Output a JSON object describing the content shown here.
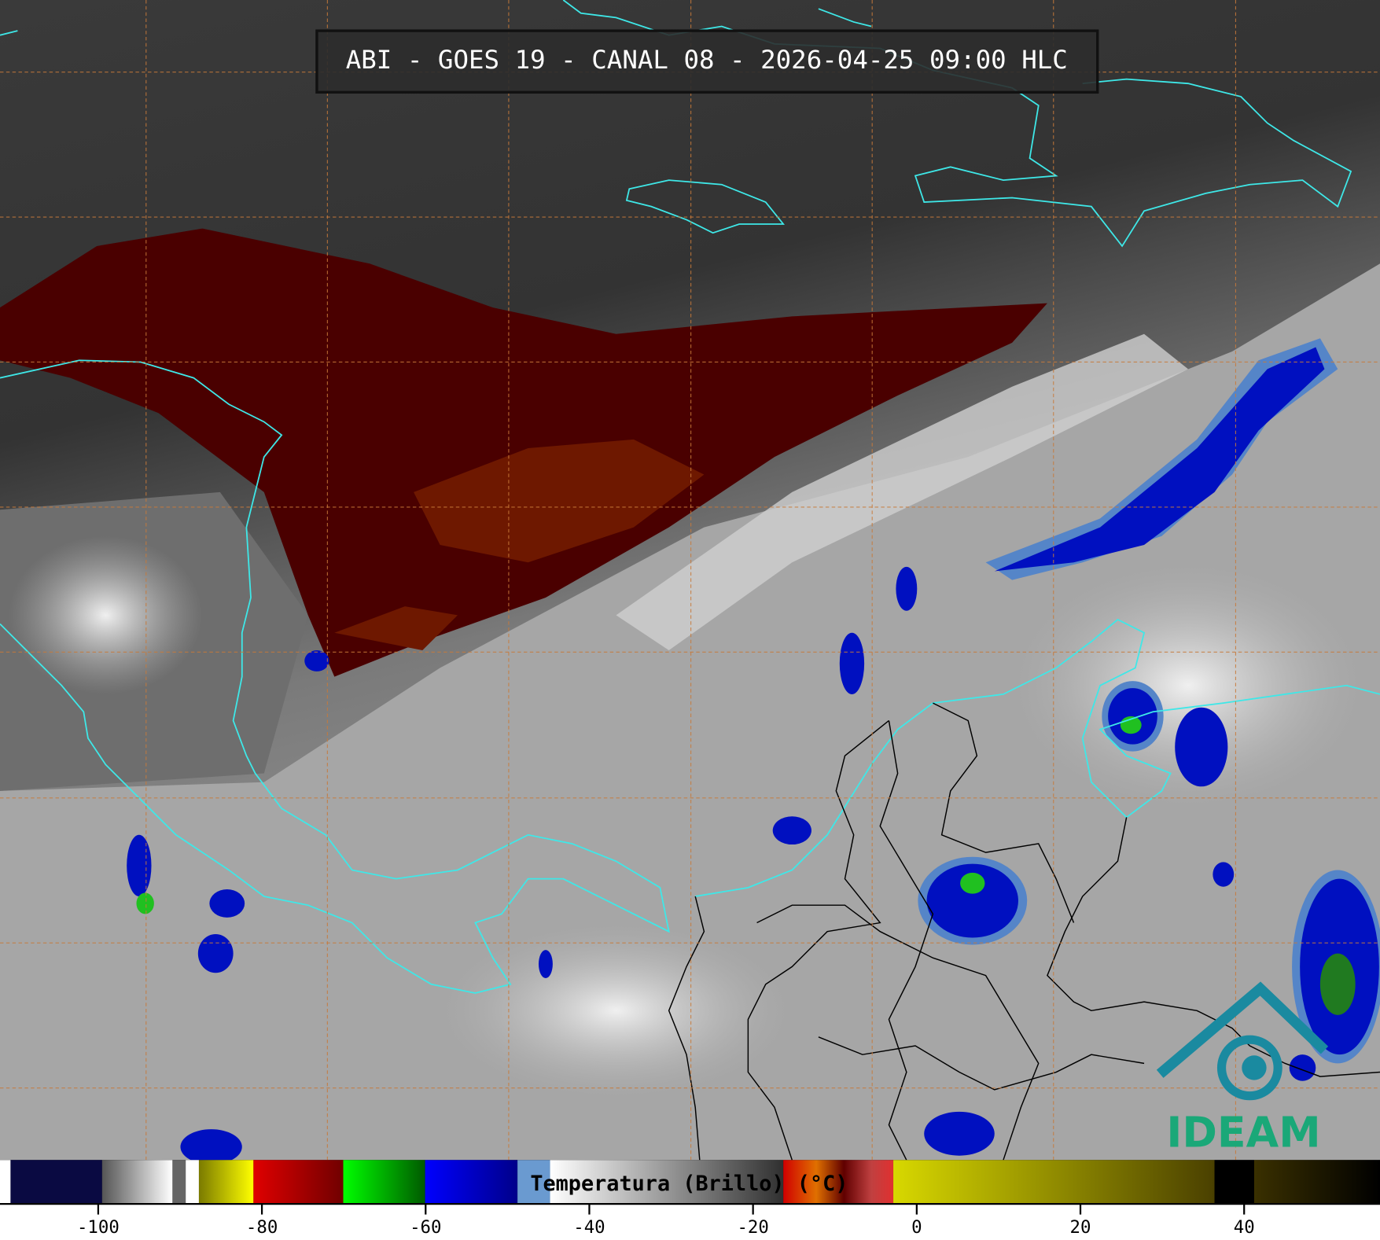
{
  "title": "ABI - GOES 19 - CANAL 08 - 2026-04-25 09:00 HLC",
  "colorbar": {
    "label": "Temperatura (Brillo) (°C)",
    "range": [
      -112,
      56.6
    ],
    "ticks": [
      -100,
      -80,
      -60,
      -40,
      -20,
      0,
      20,
      40
    ]
  },
  "logo": "IDEAM"
}
